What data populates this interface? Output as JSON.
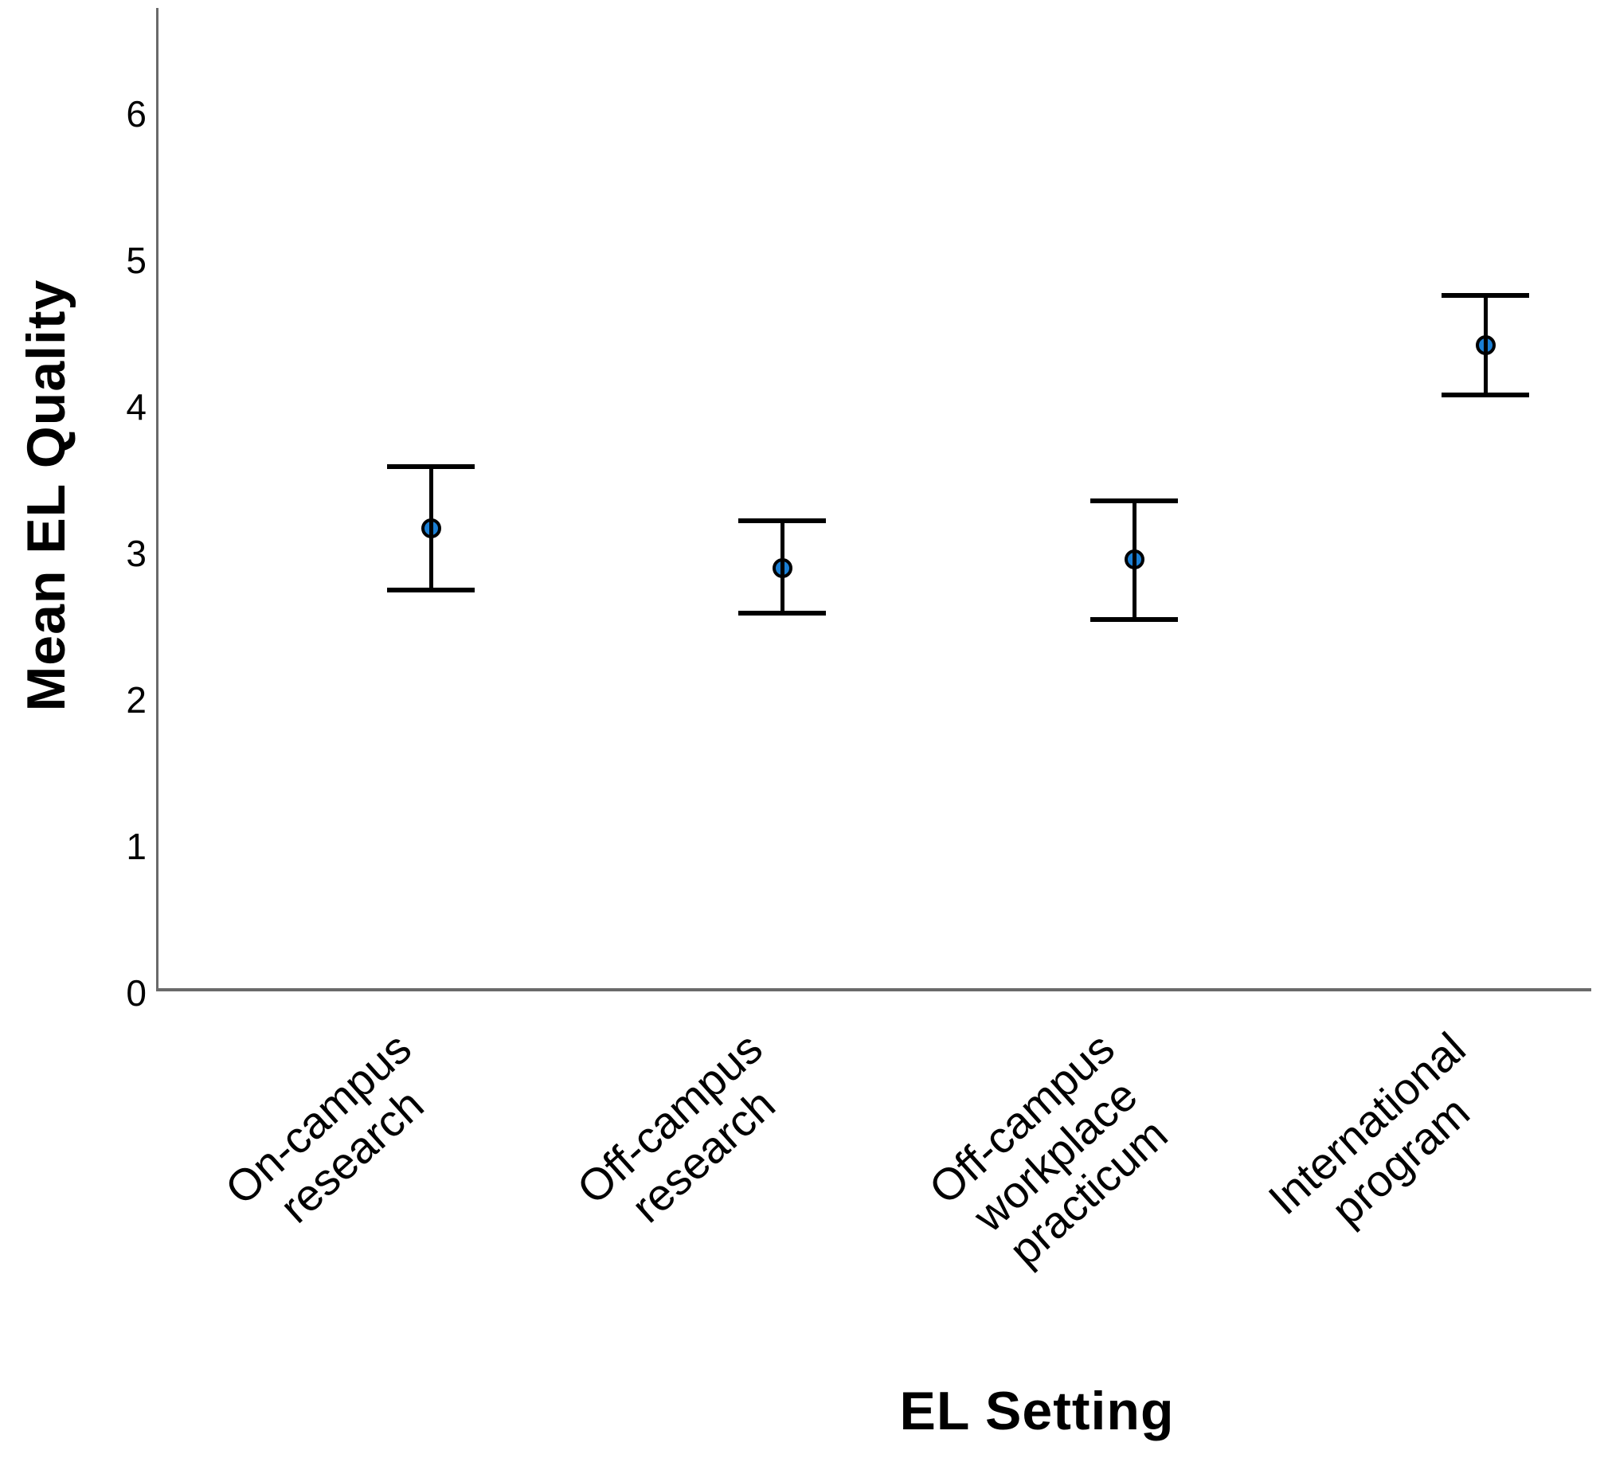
{
  "figure": {
    "background": "#ffffff"
  },
  "chart_data": {
    "type": "scatter",
    "subtype": "mean-with-ci-errorbars",
    "title": "",
    "xlabel": "EL Setting",
    "ylabel": "Mean EL Quality",
    "categories": [
      "On-campus research",
      "Off-campus research",
      "Off-campus workplace practicum",
      "International program"
    ],
    "category_label_lines": [
      [
        "On-campus",
        "research"
      ],
      [
        "Off-campus",
        "research"
      ],
      [
        "Off-campus",
        "workplace",
        "practicum"
      ],
      [
        "International",
        "program"
      ]
    ],
    "series": [
      {
        "name": "Mean EL Quality",
        "means": [
          3.16,
          2.89,
          2.95,
          4.41
        ],
        "ci_low": [
          2.74,
          2.58,
          2.54,
          4.07
        ],
        "ci_high": [
          3.58,
          3.21,
          3.35,
          4.75
        ]
      }
    ],
    "y_ticks": [
      0,
      1,
      2,
      3,
      4,
      5,
      6
    ],
    "ylim": [
      0,
      6.7
    ],
    "grid": false,
    "legend": false,
    "colors": {
      "marker_fill": "#1b7fd4",
      "marker_stroke": "#000000",
      "errorbar": "#000000",
      "axis": "#6a6a6a",
      "text": "#000000"
    }
  }
}
